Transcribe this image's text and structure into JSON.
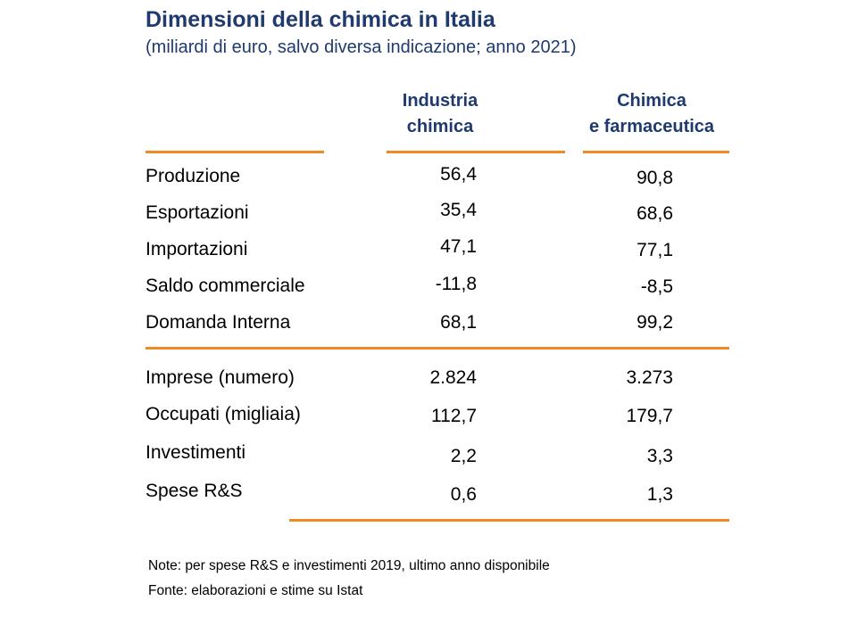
{
  "title": "Dimensioni della chimica in Italia",
  "subtitle": "(miliardi di euro, salvo diversa indicazione; anno 2021)",
  "columns": [
    {
      "line1": "Industria",
      "line2": "chimica"
    },
    {
      "line1": "Chimica",
      "line2": "e farmaceutica"
    }
  ],
  "rows": [
    {
      "label": "Produzione",
      "v1": "56,4",
      "v2": "90,8"
    },
    {
      "label": "Esportazioni",
      "v1": "35,4",
      "v2": "68,6"
    },
    {
      "label": "Importazioni",
      "v1": "47,1",
      "v2": "77,1"
    },
    {
      "label": "Saldo commerciale",
      "v1": "-11,8",
      "v2": "-8,5"
    },
    {
      "label": "Domanda Interna",
      "v1": "68,1",
      "v2": "99,2"
    },
    {
      "label": "Imprese (numero)",
      "v1": "2.824",
      "v2": "3.273"
    },
    {
      "label": "Occupati (migliaia)",
      "v1": "112,7",
      "v2": "179,7"
    },
    {
      "label": "Investimenti",
      "v1": "2,2",
      "v2": "3,3"
    },
    {
      "label": "Spese R&S",
      "v1": "0,6",
      "v2": "1,3"
    }
  ],
  "notes": {
    "note": "Note: per spese R&S e investimenti 2019, ultimo anno disponibile",
    "source": "Fonte: elaborazioni e stime su Istat"
  },
  "colors": {
    "title": "#1f3a6e",
    "rule": "#f08a24"
  }
}
